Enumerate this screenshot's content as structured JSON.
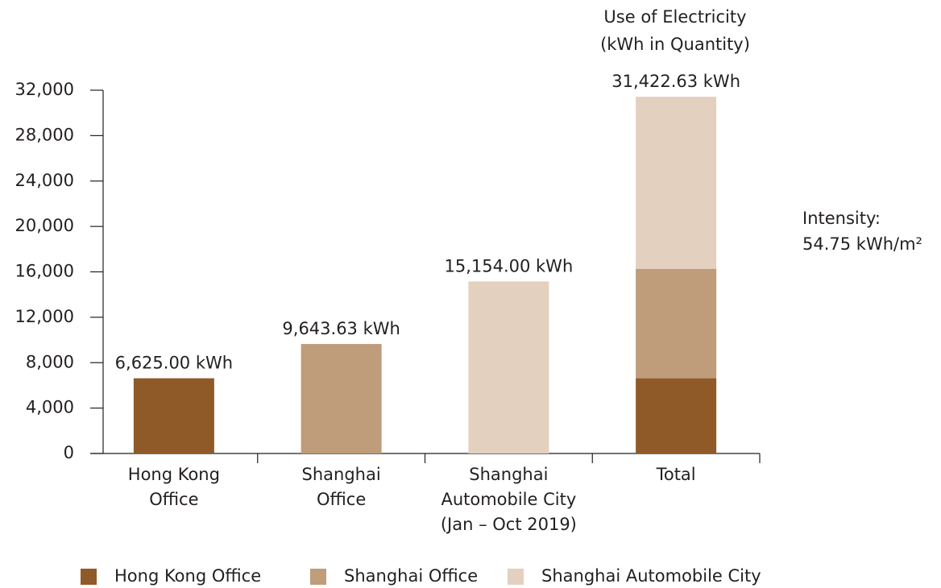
{
  "chart_data": {
    "type": "stacked_bar",
    "title": [
      "Use of Electricity",
      "(kWh in Quantity)"
    ],
    "annotation": [
      "Intensity:",
      "54.75 kWh/m²"
    ],
    "categories": [
      [
        "Hong Kong",
        "Office"
      ],
      [
        "Shanghai",
        "Office"
      ],
      [
        "Shanghai",
        "Automobile City",
        "(Jan – Oct 2019)"
      ],
      [
        "Total"
      ]
    ],
    "series": [
      {
        "name": "Hong Kong Office",
        "color": "#8f5a28",
        "values": [
          6625,
          null,
          null,
          6625
        ]
      },
      {
        "name": "Shanghai Office",
        "color": "#bf9c7a",
        "values": [
          null,
          9643.63,
          null,
          9643.63
        ]
      },
      {
        "name": "Shanghai Automobile City",
        "color": "#e3d0bf",
        "values": [
          null,
          null,
          15154,
          15154
        ]
      }
    ],
    "value_labels": [
      "6,625.00 kWh",
      "9,643.63 kWh",
      "15,154.00 kWh",
      "31,422.63 kWh"
    ],
    "ylim": [
      0,
      32000
    ],
    "yticks": [
      0,
      {
        "value": 4000,
        "label": "4,000"
      },
      {
        "value": 8000,
        "label": "8,000"
      },
      {
        "value": 12000,
        "label": "12,000"
      },
      {
        "value": 16000,
        "label": "16,000"
      },
      {
        "value": 20000,
        "label": "20,000"
      },
      {
        "value": 24000,
        "label": "24,000"
      },
      {
        "value": 28000,
        "label": "28,000"
      },
      {
        "value": 32000,
        "label": "32,000"
      }
    ],
    "grid": false,
    "legend": "bottom"
  }
}
